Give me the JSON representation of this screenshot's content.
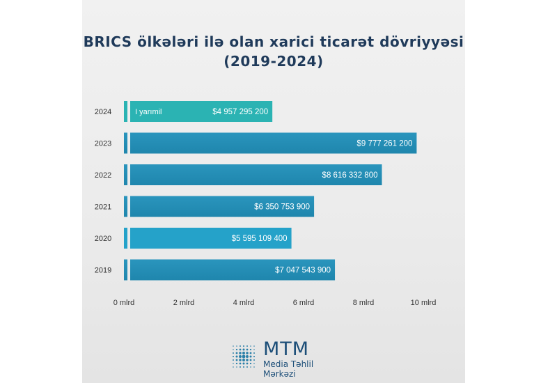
{
  "title_line1": "BRICS ölkələri ilə olan xarici ticarət dövriyyəsi",
  "title_line2": "(2019-2024)",
  "colors": {
    "bar_default": "#1f86ad",
    "bar_2024": "#2bb3b3",
    "bar_2020": "#25a2c9",
    "title": "#1f3a5a",
    "logo": "#1c4e78"
  },
  "chart_data": {
    "type": "bar",
    "orientation": "horizontal",
    "categories": [
      "2024",
      "2023",
      "2022",
      "2021",
      "2020",
      "2019"
    ],
    "values": [
      4957295200,
      9777261200,
      8616332800,
      6350753900,
      5595109400,
      7047543900
    ],
    "value_labels": [
      "$4 957 295 200",
      "$9 777 261 200",
      "$8 616 332 800",
      "$6 350 753 900",
      "$5 595 109 400",
      "$7 047 543 900"
    ],
    "annotations": [
      {
        "category": "2024",
        "text": "I yarımil"
      }
    ],
    "x_ticks": [
      "0 mlrd",
      "2 mlrd",
      "4 mlrd",
      "6 mlrd",
      "8 mlrd",
      "10 mlrd"
    ],
    "xlim": [
      0,
      10000000000
    ],
    "grid": false
  },
  "logo": {
    "name": "MTM",
    "line1": "Media Təhlil",
    "line2": "Mərkəzi",
    "icon": "mtm-logo-icon"
  }
}
